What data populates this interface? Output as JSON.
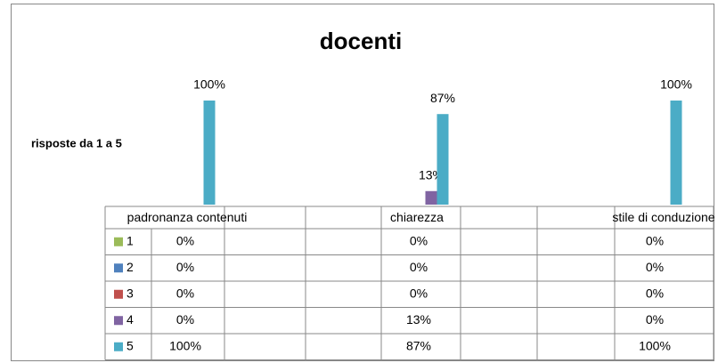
{
  "chart_data": {
    "type": "bar",
    "title": "docenti",
    "y_label": "risposte da 1 a 5",
    "categories": [
      "padronanza contenuti",
      "chiarezza",
      "stile di conduzione"
    ],
    "ylim": [
      0,
      100
    ],
    "series": [
      {
        "name": "1",
        "color": "#9bbb59",
        "values": [
          0,
          0,
          0
        ],
        "value_labels": [
          "0%",
          "0%",
          "0%"
        ]
      },
      {
        "name": "2",
        "color": "#4f81bd",
        "values": [
          0,
          0,
          0
        ],
        "value_labels": [
          "0%",
          "0%",
          "0%"
        ]
      },
      {
        "name": "3",
        "color": "#c0504d",
        "values": [
          0,
          0,
          0
        ],
        "value_labels": [
          "0%",
          "0%",
          "0%"
        ]
      },
      {
        "name": "4",
        "color": "#8064a2",
        "values": [
          0,
          13,
          0
        ],
        "value_labels": [
          "0%",
          "13%",
          "0%"
        ]
      },
      {
        "name": "5",
        "color": "#4bacc6",
        "values": [
          100,
          87,
          100
        ],
        "value_labels": [
          "100%",
          "87%",
          "100%"
        ]
      }
    ]
  }
}
